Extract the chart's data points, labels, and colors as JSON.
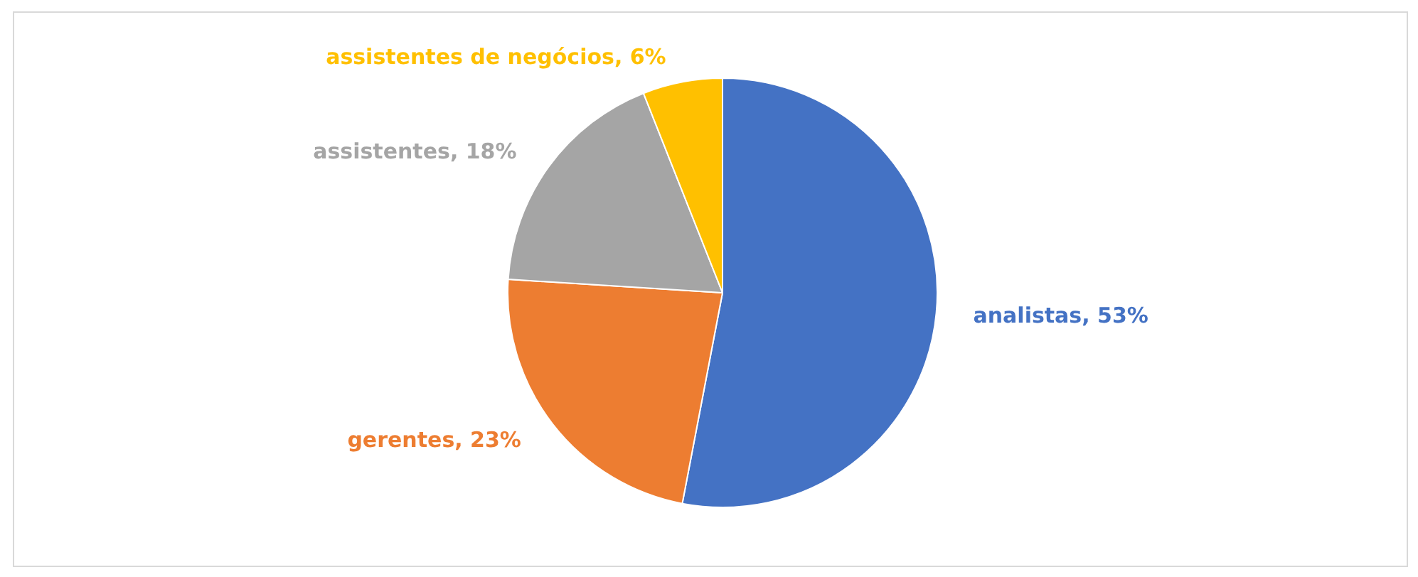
{
  "chart_data": {
    "type": "pie",
    "categories": [
      "analistas",
      "gerentes",
      "assistentes",
      "assistentes de negócios"
    ],
    "values": [
      53,
      23,
      18,
      6
    ],
    "value_labels": [
      "53%",
      "23%",
      "18%",
      "6%"
    ],
    "colors": [
      "#4472c4",
      "#ed7d31",
      "#a5a5a5",
      "#ffc000"
    ],
    "legend": false
  }
}
